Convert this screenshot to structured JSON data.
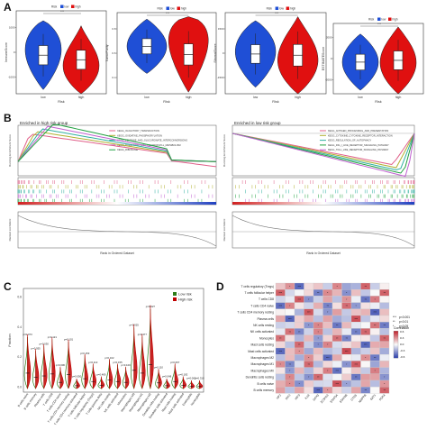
{
  "panels": {
    "a": "A",
    "b": "B",
    "c": "C",
    "d": "D"
  },
  "colors": {
    "low": "#1f4fd6",
    "high": "#e01010",
    "c_low": "#2e7d1a",
    "c_high": "#c00000"
  },
  "panel_a": {
    "legend_title": "Risk",
    "legend_low": "low",
    "legend_high": "high",
    "sig": "***",
    "x_title": "Risk",
    "plots": [
      {
        "ylabel": "ImmuneScore",
        "x_low": "low",
        "x_high": "high",
        "yticks": [
          "1000",
          "0",
          "-1000"
        ]
      },
      {
        "ylabel": "TumorPurity",
        "x_low": "low",
        "x_high": "high",
        "yticks": [
          "0.8",
          "0.6",
          "0.4"
        ]
      },
      {
        "ylabel": "StromalScore",
        "x_low": "low",
        "x_high": "high",
        "yticks": [
          "1500",
          "0",
          "-1500"
        ]
      },
      {
        "ylabel": "ESTIMATEScore",
        "x_low": "low",
        "x_high": "high",
        "yticks": [
          "2000",
          "0",
          "-2000"
        ]
      }
    ]
  },
  "panel_b": {
    "left": {
      "title": "Enriched in high risk group",
      "legend": [
        {
          "label": "KEGG_OLFACTORY_TRANSDUCTION",
          "color": "#e0608a"
        },
        {
          "label": "KEGG_OXIDATIVE_PHOSPHORYLATION",
          "color": "#b0b030"
        },
        {
          "label": "KEGG_PENTOSE_AND_GLUCURONATE_INTERCONVERSIONS",
          "color": "#30b0a0"
        },
        {
          "label": "KEGG_PORPHYRIN_AND_CHLOROPHYLL_METABOLISM",
          "color": "#c060d0"
        },
        {
          "label": "KEGG_RIBOSOME",
          "color": "#20a040"
        }
      ],
      "ylabel_top": "Running Enrichment Score",
      "ylabel_bottom": "Ranked List Metric",
      "xlabel": "Rank in Ordered Dataset"
    },
    "right": {
      "title": "Enriched in low risk group",
      "legend": [
        {
          "label": "KEGG_ANTIGEN_PROCESSING_AND_PRESENTATION",
          "color": "#e0608a"
        },
        {
          "label": "KEGG_CYTOKINE_CYTOKINE_RECEPTOR_INTERACTION",
          "color": "#b0b030"
        },
        {
          "label": "KEGG_REGULATION_OF_AUTOPHAGY",
          "color": "#30b0a0"
        },
        {
          "label": "KEGG_RIG_I_LIKE_RECEPTOR_SIGNALING_PATHWAY",
          "color": "#20a040"
        },
        {
          "label": "KEGG_TOLL_LIKE_RECEPTOR_SIGNALING_PATHWAY",
          "color": "#c060d0"
        }
      ],
      "ylabel_top": "Running Enrichment Score",
      "ylabel_bottom": "Ranked List Metric",
      "xlabel": "Rank in Ordered Dataset"
    }
  },
  "panel_c": {
    "legend_low": "Low risk",
    "legend_high": "High risk",
    "ylabel": "Fraction",
    "yticks": [
      "0.6",
      "0.4",
      "0.2",
      "0.0"
    ],
    "categories": [
      "B cells naive",
      "B cells memory",
      "Plasma cells",
      "T cells CD8",
      "T cells CD4 naive",
      "T cells CD4 memory resting",
      "T cells CD4 memory activated",
      "T cells follicular helper",
      "T cells regulatory (Tregs)",
      "T cells gamma delta",
      "NK cells resting",
      "NK cells activated",
      "Monocytes",
      "Macrophages M0",
      "Macrophages M1",
      "Macrophages M2",
      "Dendritic cells resting",
      "Dendritic cells activated",
      "Mast cells resting",
      "Mast cells activated",
      "Eosinophils",
      "Neutrophils"
    ],
    "pvalues": [
      "p=0.073",
      "p=0.055",
      "p=0.030",
      "p=0.121",
      "p=0.006",
      "p=0.101",
      "p=0.050",
      "p=0.153",
      "p=0.113",
      "p=0.480",
      "p=0.102",
      "p=0.155",
      "p=0.100",
      "p=0.025",
      "p=0.377",
      "p=0.027",
      "p=0.110",
      "p=0.048",
      "p=0.067",
      "p=0.182",
      "p=0.063",
      "p=0.310"
    ]
  },
  "panel_d": {
    "rows": [
      "T cells regulatory (Tregs)",
      "T cells follicular helper",
      "T cells CD8",
      "T cells CD4 naive",
      "T cells CD4 memory resting",
      "Plasma cells",
      "NK cells resting",
      "NK cells activated",
      "Monocytes",
      "Mast cells resting",
      "Mast cells activated",
      "Macrophages M2",
      "Macrophages M1",
      "Macrophages M0",
      "Dendritic cells resting",
      "B cells naive",
      "B cells memory"
    ],
    "cols": [
      "HP2",
      "IRF2",
      "IRF9",
      "IL18",
      "GPX3",
      "ZC3H13",
      "STAT5A",
      "STAT5B",
      "CTSS",
      "NMPPB",
      "SAT1",
      "PDK4"
    ],
    "legend_title": "Correlation",
    "legend_ticks": [
      "0.6",
      "0.3",
      "0.0",
      "-0.3",
      "-0.6"
    ],
    "sig": [
      {
        "mark": "***",
        "label": "p<0.001"
      },
      {
        "mark": "**",
        "label": "p<0.01"
      },
      {
        "mark": "*",
        "label": "p<0.05"
      }
    ]
  }
}
